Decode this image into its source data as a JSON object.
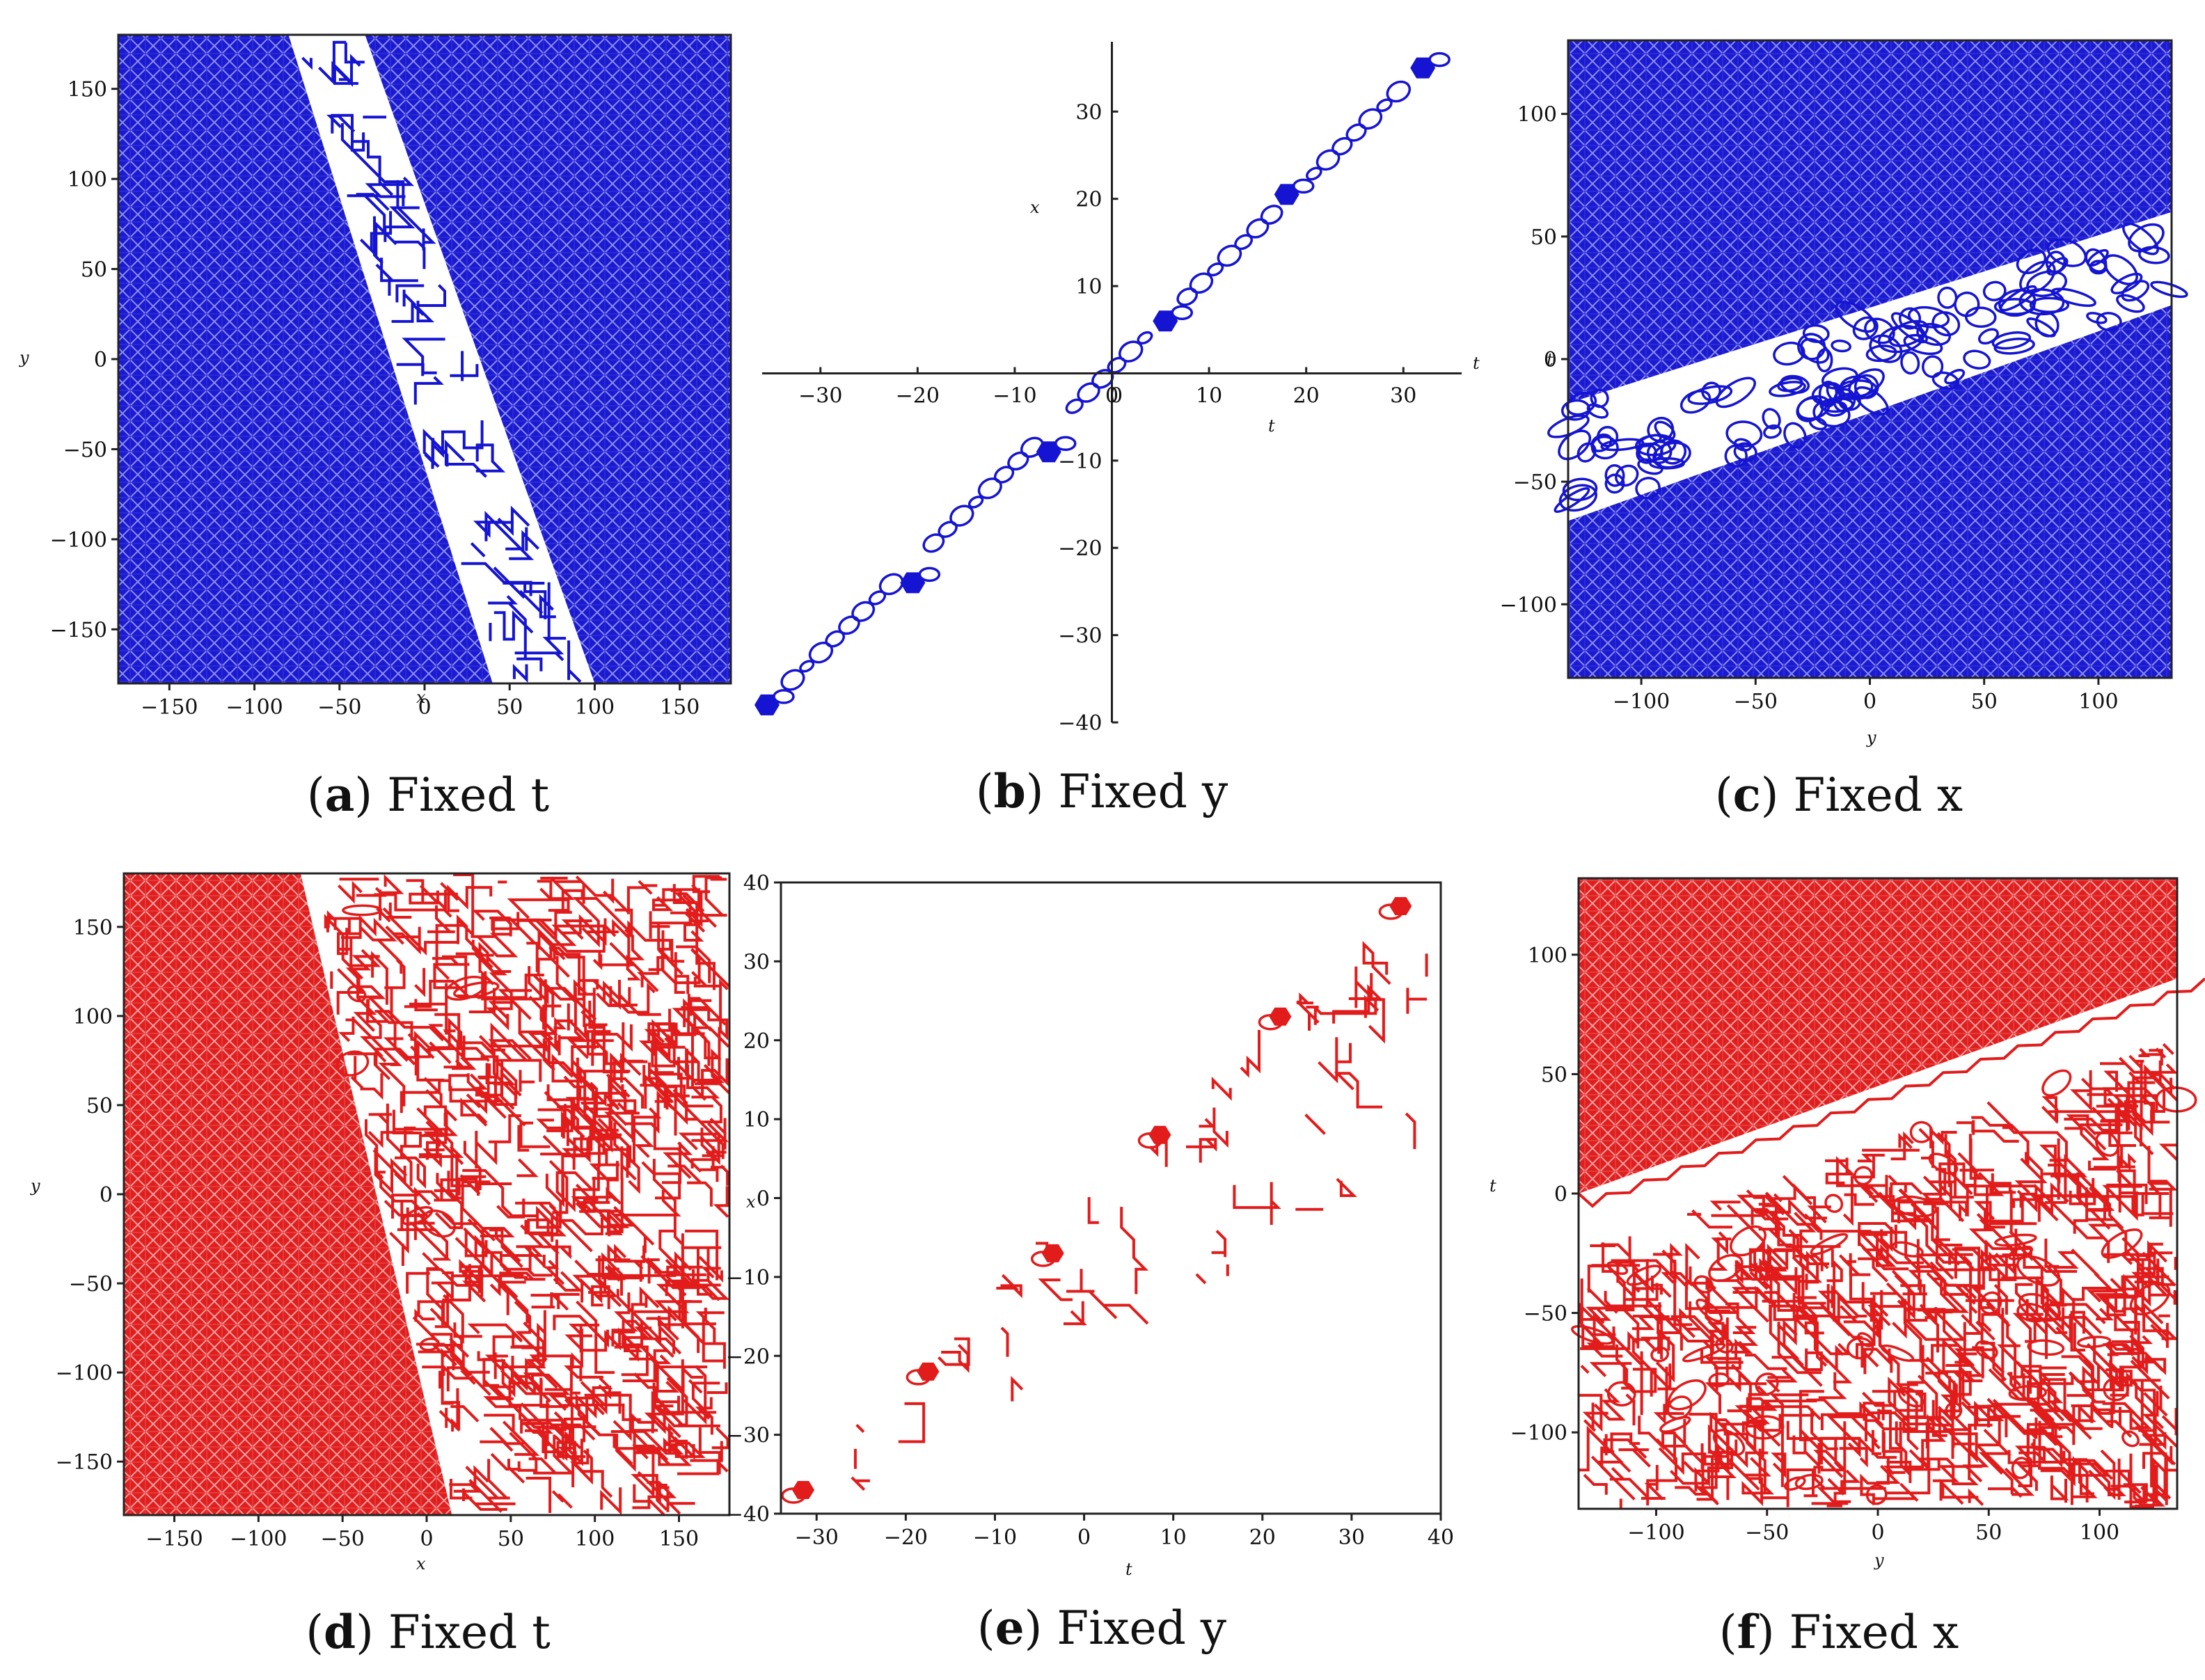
{
  "chart_data": [
    {
      "id": "a",
      "type": "contour",
      "color": "#1414d2",
      "caption": {
        "letter": "a",
        "text": "Fixed t"
      },
      "xlabel": "x",
      "ylabel": "y",
      "xlim": [
        -180,
        180
      ],
      "ylim": [
        -180,
        180
      ],
      "xticks": [
        -150,
        -100,
        -50,
        0,
        50,
        100,
        150
      ],
      "yticks": [
        150,
        100,
        50,
        0,
        -50,
        -100,
        -150
      ],
      "band": {
        "left_top": -80,
        "right_top": -35,
        "left_bottom": 40,
        "right_bottom": 100
      }
    },
    {
      "id": "b",
      "type": "contour",
      "color": "#1414d2",
      "caption": {
        "letter": "b",
        "text": "Fixed y"
      },
      "xlabel": "t",
      "ylabel": "x",
      "xlim": [
        -36,
        36
      ],
      "ylim": [
        -40,
        38
      ],
      "xticks": [
        -30,
        -20,
        -10,
        0,
        10,
        20,
        30
      ],
      "yticks": [
        30,
        20,
        10,
        -10,
        -20,
        -30,
        -40
      ],
      "zero_label": "0",
      "peaks": [
        [
          -35.5,
          -38
        ],
        [
          -20.5,
          -24
        ],
        [
          -6.5,
          -9
        ],
        [
          5.5,
          6
        ],
        [
          18,
          20.5
        ],
        [
          32,
          35
        ]
      ]
    },
    {
      "id": "c",
      "type": "contour",
      "color": "#1414d2",
      "caption": {
        "letter": "c",
        "text": "Fixed x"
      },
      "xlabel": "y",
      "ylabel": "t",
      "xlim": [
        -132,
        132
      ],
      "ylim": [
        -130,
        130
      ],
      "xticks": [
        -100,
        -50,
        0,
        50,
        100
      ],
      "yticks": [
        100,
        50,
        0,
        -50,
        -100
      ],
      "band": {
        "top_left": -18,
        "bottom_left": -66,
        "top_right": 60,
        "bottom_right": 22
      }
    },
    {
      "id": "d",
      "type": "contour",
      "color": "#e21b1b",
      "caption": {
        "letter": "d",
        "text": "Fixed t"
      },
      "xlabel": "x",
      "ylabel": "y",
      "xlim": [
        -180,
        180
      ],
      "ylim": [
        -180,
        180
      ],
      "xticks": [
        -150,
        -100,
        -50,
        0,
        50,
        100,
        150
      ],
      "yticks": [
        150,
        100,
        50,
        0,
        -50,
        -100,
        -150
      ],
      "boundary": {
        "top_x": -75,
        "bottom_x": 15
      }
    },
    {
      "id": "e",
      "type": "contour",
      "color": "#e21b1b",
      "caption": {
        "letter": "e",
        "text": "Fixed y"
      },
      "xlabel": "t",
      "ylabel": "x",
      "xlim": [
        -34,
        40
      ],
      "ylim": [
        -40,
        40
      ],
      "xticks": [
        -30,
        -20,
        -10,
        0,
        10,
        20,
        30,
        40
      ],
      "yticks": [
        40,
        30,
        20,
        10,
        0,
        -10,
        -20,
        -30,
        -40
      ],
      "peaks": [
        [
          -31.5,
          -37
        ],
        [
          -17.5,
          -22
        ],
        [
          -3.5,
          -7
        ],
        [
          8.5,
          8
        ],
        [
          22,
          23
        ],
        [
          35.5,
          37
        ]
      ]
    },
    {
      "id": "f",
      "type": "contour",
      "color": "#e21b1b",
      "caption": {
        "letter": "f",
        "text": "Fixed x"
      },
      "xlabel": "y",
      "ylabel": "t",
      "xlim": [
        -135,
        135
      ],
      "ylim": [
        -132,
        132
      ],
      "xticks": [
        -100,
        -50,
        0,
        50,
        100
      ],
      "yticks": [
        100,
        50,
        0,
        -50,
        -100
      ],
      "boundary": {
        "left_t": 0,
        "right_t": 90
      }
    }
  ]
}
